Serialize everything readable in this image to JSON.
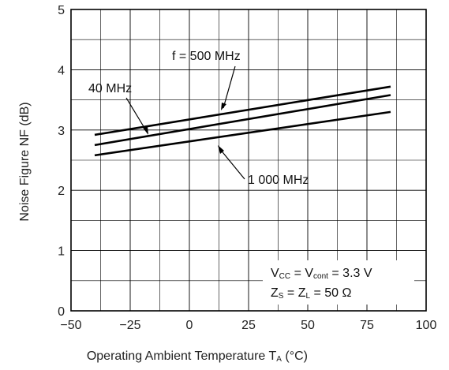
{
  "chart_data": {
    "type": "line",
    "xlabel_main": "Operating Ambient Temperature  T",
    "xlabel_sub": "A",
    "xlabel_unit": " (°C)",
    "ylabel": "Noise Figure  NF (dB)",
    "xlim": [
      -50,
      100
    ],
    "ylim": [
      0,
      5
    ],
    "x_ticks": [
      "−50",
      "−25",
      "0",
      "25",
      "50",
      "75",
      "100"
    ],
    "y_ticks": [
      "0",
      "1",
      "2",
      "3",
      "4",
      "5"
    ],
    "grid": true,
    "series": [
      {
        "name": "f = 500 MHz",
        "x": [
          -40,
          85
        ],
        "y": [
          2.92,
          3.72
        ]
      },
      {
        "name": "40 MHz",
        "x": [
          -40,
          85
        ],
        "y": [
          2.75,
          3.58
        ]
      },
      {
        "name": "1 000 MHz",
        "x": [
          -40,
          85
        ],
        "y": [
          2.58,
          3.3
        ]
      }
    ],
    "conditions": {
      "line1_a": "V",
      "line1_a_sub": "CC",
      "line1_b": " = V",
      "line1_b_sub": "cont",
      "line1_c": " = 3.3 V",
      "line2_a": "Z",
      "line2_a_sub": "S",
      "line2_b": " = Z",
      "line2_b_sub": "L",
      "line2_c": " = 50 Ω"
    }
  }
}
